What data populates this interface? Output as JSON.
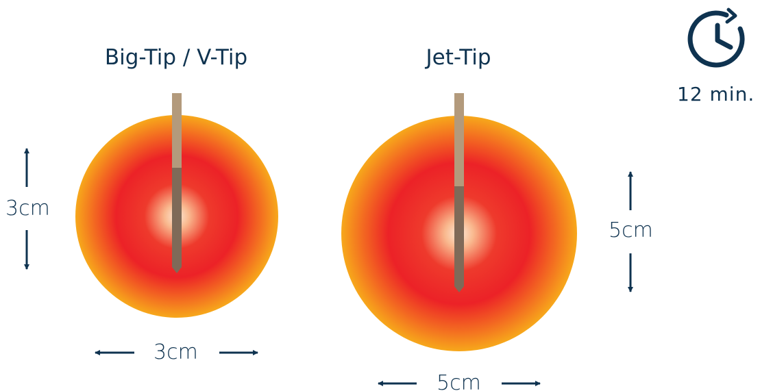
{
  "probes": [
    {
      "title": "Big-Tip / V-Tip",
      "height_label": "3cm",
      "width_label": "3cm"
    },
    {
      "title": "Jet-Tip",
      "height_label": "5cm",
      "width_label": "5cm"
    }
  ],
  "timer": {
    "icon": "clock-icon",
    "label": "12 min."
  },
  "colors": {
    "text": "#0f3350",
    "ablation_center": "#fde8d6",
    "ablation_mid": "#ec2227",
    "ablation_edge": "#f7a81b",
    "probe_upper": "#b39a7c",
    "probe_lower": "#7f6a58"
  }
}
